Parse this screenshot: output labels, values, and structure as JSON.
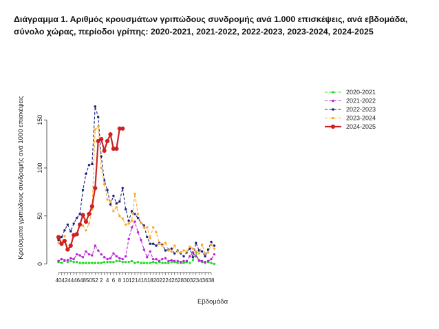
{
  "title_line1": "Διάγραμμα 1. Αριθμός κρουσμάτων γριπώδους συνδρομής ανά 1.000 επισκέψεις, ανά εβδομάδα,",
  "title_line2": "σύνολο χώρας, περίοδοι γρίπης: 2020-2021, 2021-2022, 2022-2023, 2023-2024, 2024-2025",
  "chart_data": {
    "type": "line",
    "xlabel": "Εβδομάδα",
    "ylabel": "Κρούσματα γριπώδους συνδρομής ανά 1000 επισκέψεις",
    "ylim": [
      0,
      170
    ],
    "yticks": [
      0,
      50,
      100,
      150
    ],
    "x_tick_labels": [
      "40",
      "42",
      "44",
      "46",
      "48",
      "50",
      "52",
      "2",
      "4",
      "6",
      "8",
      "10",
      "12",
      "14",
      "16",
      "18",
      "20",
      "22",
      "24",
      "26",
      "28",
      "30",
      "32",
      "34",
      "36",
      "38"
    ],
    "weeks": [
      "40",
      "41",
      "42",
      "43",
      "44",
      "45",
      "46",
      "47",
      "48",
      "49",
      "50",
      "51",
      "52",
      "1",
      "2",
      "3",
      "4",
      "5",
      "6",
      "7",
      "8",
      "9",
      "10",
      "11",
      "12",
      "13",
      "14",
      "15",
      "16",
      "17",
      "18",
      "19",
      "20",
      "21",
      "22",
      "23",
      "24",
      "25",
      "26",
      "27",
      "28",
      "29",
      "30",
      "31",
      "32",
      "33",
      "34",
      "35",
      "36",
      "37",
      "38",
      "39"
    ],
    "legend_position": "top-right",
    "series": [
      {
        "name": "2020-2021",
        "color": "#22dd22",
        "style": "dashed",
        "values": [
          2,
          1,
          3,
          2,
          3,
          2,
          2,
          1,
          1,
          1,
          1,
          1,
          1,
          1,
          1,
          2,
          2,
          2,
          2,
          3,
          3,
          2,
          2,
          2,
          3,
          1,
          2,
          1,
          1,
          1,
          1,
          2,
          1,
          2,
          1,
          1,
          1,
          2,
          2,
          1,
          1,
          1,
          2,
          1,
          4,
          12,
          3,
          2,
          1,
          2,
          1,
          0
        ]
      },
      {
        "name": "2021-2022",
        "color": "#bb22dd",
        "style": "dashed",
        "values": [
          3,
          5,
          4,
          4,
          6,
          5,
          10,
          9,
          7,
          13,
          10,
          9,
          19,
          14,
          10,
          7,
          5,
          6,
          11,
          8,
          6,
          5,
          8,
          26,
          38,
          44,
          33,
          25,
          15,
          7,
          13,
          5,
          5,
          3,
          5,
          6,
          3,
          4,
          3,
          3,
          2,
          3,
          3,
          8,
          12,
          8,
          4,
          3,
          2,
          3,
          5,
          10
        ]
      },
      {
        "name": "2022-2023",
        "color": "#1a237e",
        "style": "dashed",
        "values": [
          25,
          28,
          35,
          41,
          34,
          42,
          48,
          52,
          77,
          94,
          103,
          104,
          164,
          153,
          112,
          87,
          77,
          62,
          71,
          63,
          65,
          79,
          57,
          45,
          55,
          52,
          48,
          43,
          40,
          28,
          21,
          21,
          19,
          22,
          20,
          14,
          15,
          16,
          11,
          14,
          11,
          8,
          12,
          16,
          7,
          22,
          14,
          13,
          8,
          15,
          23,
          19
        ]
      },
      {
        "name": "2023-2024",
        "color": "#ffa726",
        "style": "dashed",
        "values": [
          22,
          22,
          29,
          16,
          19,
          29,
          30,
          40,
          40,
          35,
          42,
          57,
          140,
          143,
          100,
          83,
          67,
          65,
          55,
          59,
          50,
          47,
          41,
          42,
          45,
          73,
          52,
          43,
          38,
          38,
          27,
          38,
          33,
          21,
          19,
          22,
          14,
          13,
          19,
          13,
          12,
          14,
          13,
          18,
          16,
          13,
          11,
          20,
          11,
          12,
          20,
          16
        ]
      },
      {
        "name": "2024-2025",
        "color": "#cc2222",
        "style": "solid",
        "values": [
          28,
          21,
          24,
          15,
          19,
          30,
          31,
          41,
          51,
          44,
          52,
          60,
          79,
          128,
          130,
          118,
          128,
          135,
          120,
          120,
          141,
          141
        ]
      }
    ]
  }
}
